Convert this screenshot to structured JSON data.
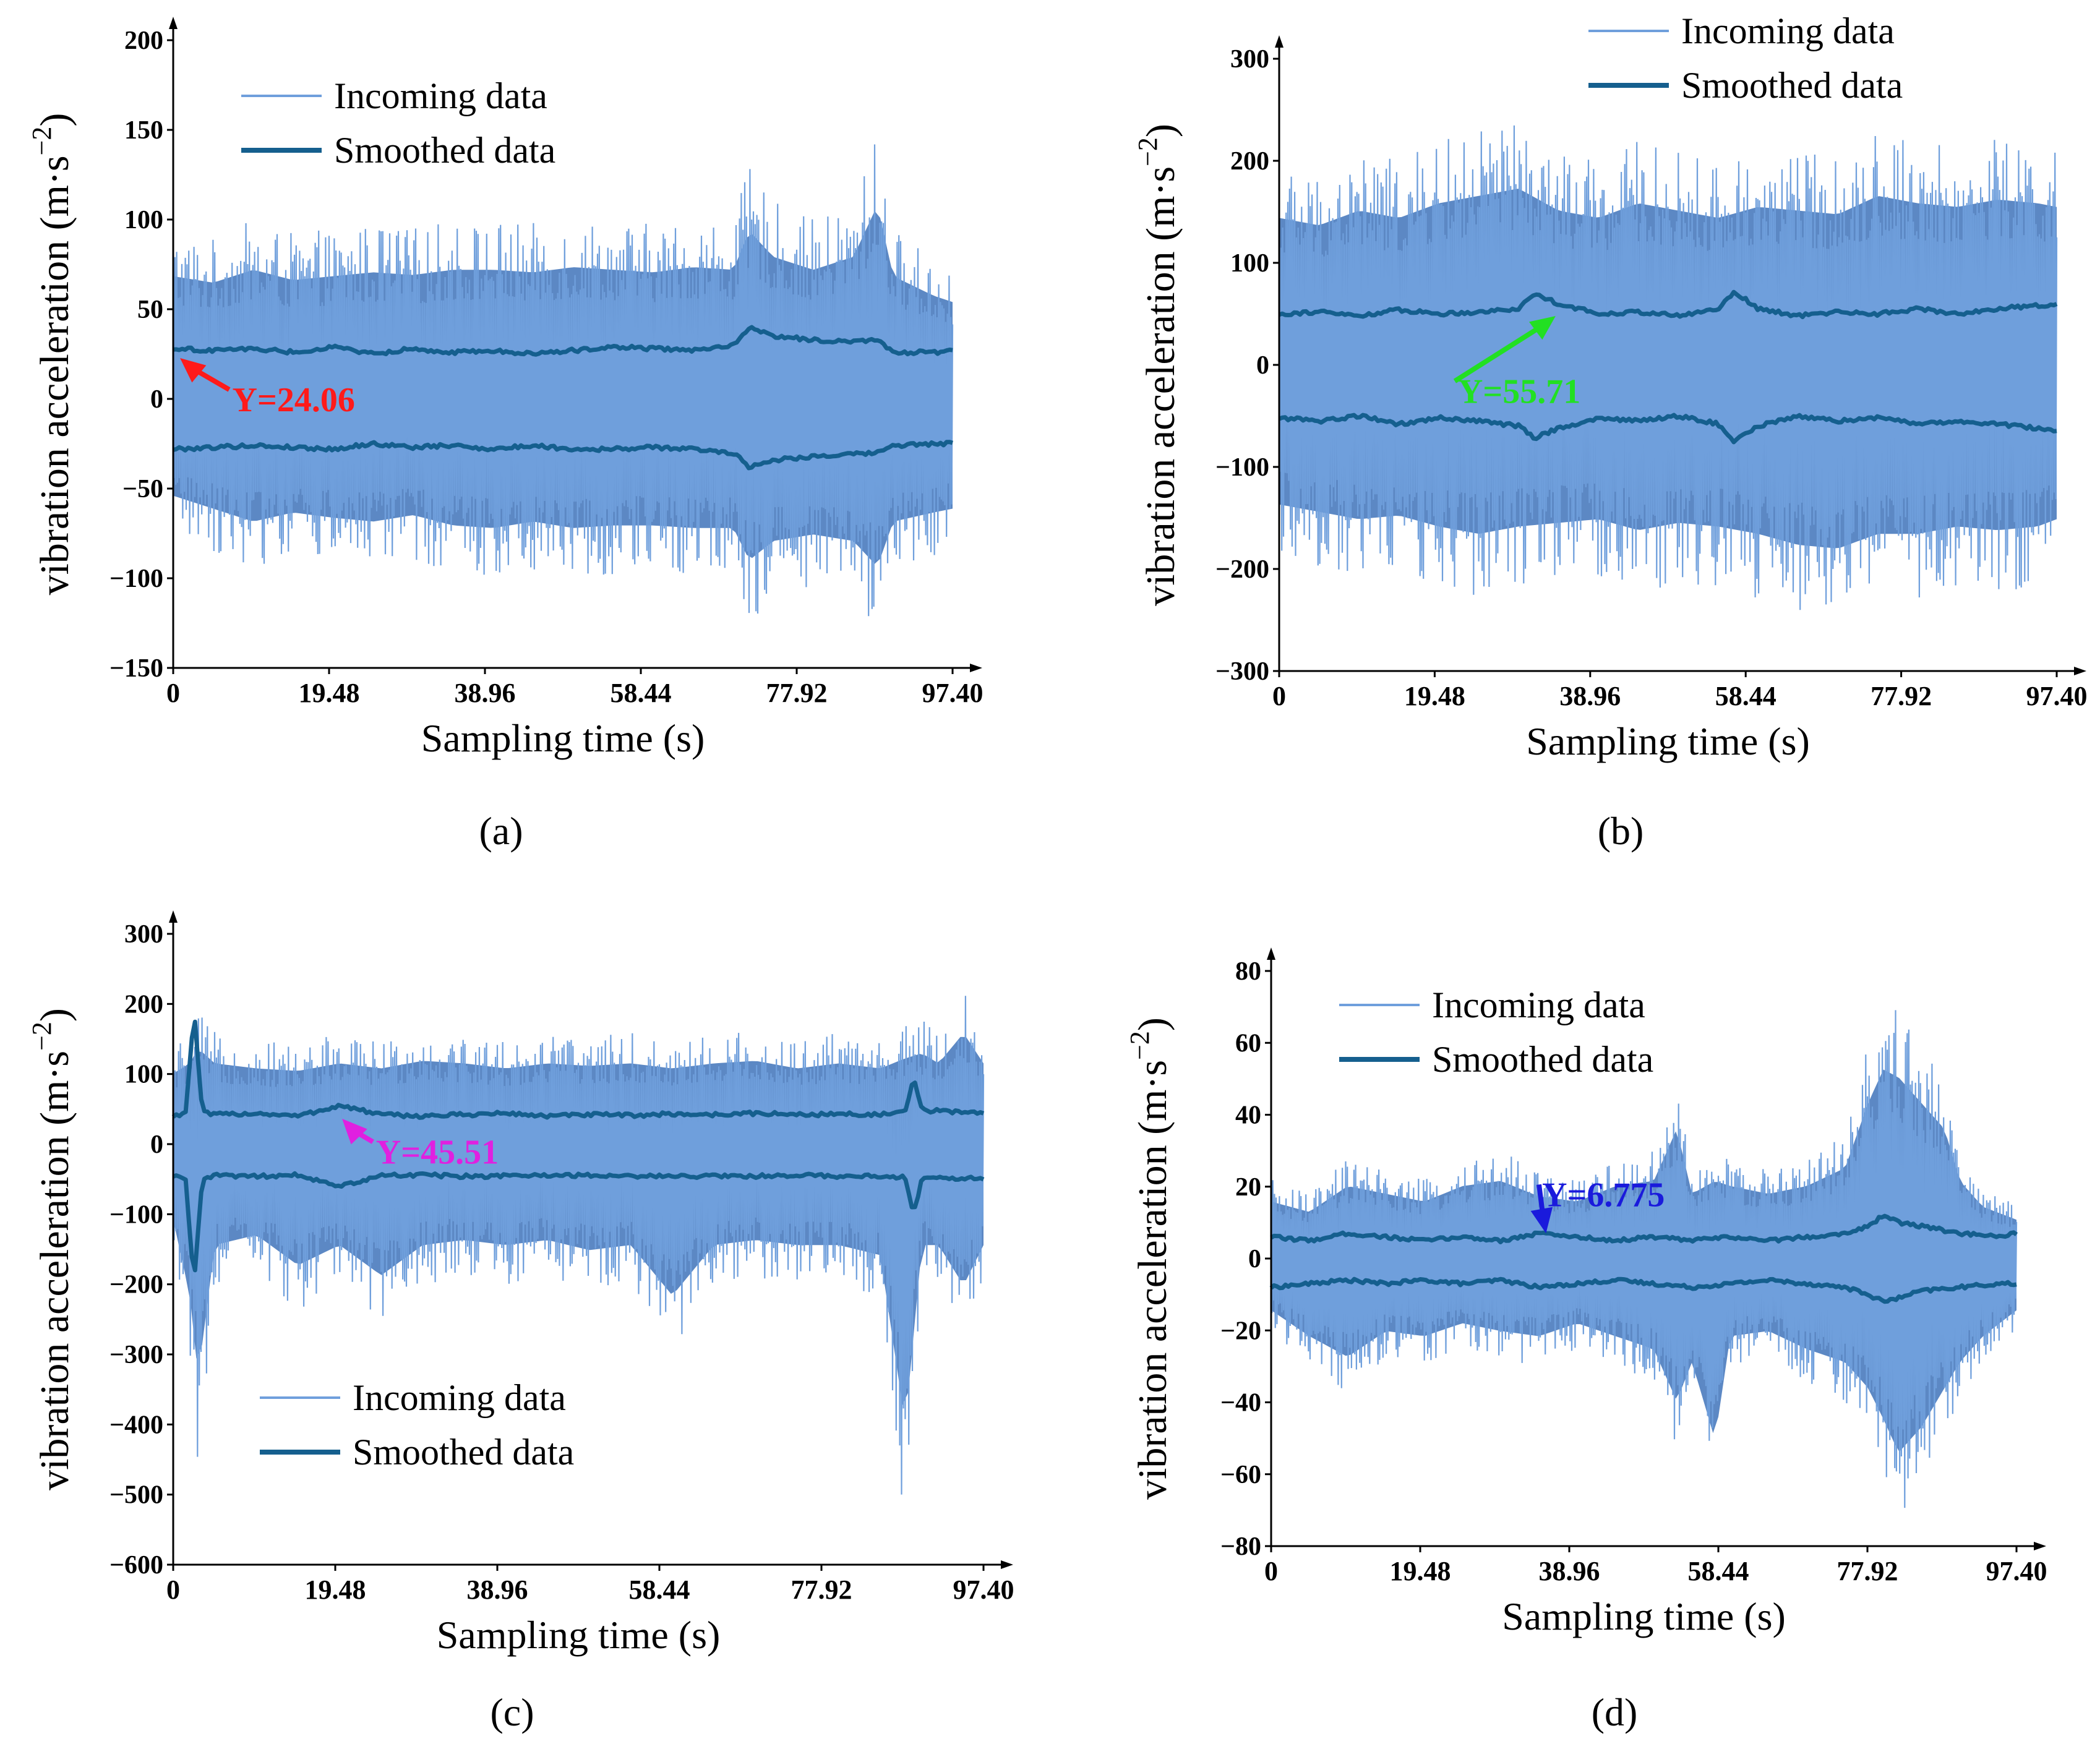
{
  "colors": {
    "incoming": "#6f9fdc",
    "envelope_fill": "#5c88c4",
    "smoothed": "#155f8e",
    "axis": "#000000"
  },
  "chart_data": [
    {
      "panel": "a",
      "type": "line",
      "caption": "(a)",
      "xlabel": "Sampling time (s)",
      "ylabel": "vibration acceleration (m·s",
      "ylabel_sup": "−2",
      "ylabel_close": ")",
      "xlim": [
        0,
        97.4
      ],
      "ylim": [
        -150,
        200
      ],
      "xticks": [
        0,
        19.48,
        38.96,
        58.44,
        77.92,
        97.4
      ],
      "xtick_labels": [
        "0",
        "19.48",
        "38.96",
        "58.44",
        "77.92",
        "97.40"
      ],
      "yticks": [
        -150,
        -100,
        -50,
        0,
        50,
        100,
        150,
        200
      ],
      "ytick_labels": [
        "−150",
        "−100",
        "−50",
        "0",
        "50",
        "100",
        "150",
        "200"
      ],
      "legend": {
        "placement": "top-left",
        "entries": [
          "Incoming data",
          "Smoothed data"
        ]
      },
      "annotation": {
        "text": "Y=24.06",
        "color": "#ff1a1a",
        "x": 0.5,
        "y": 24.06,
        "text_x": 7,
        "text_y": 0
      },
      "series": [
        {
          "name": "Incoming data",
          "x": [
            0,
            5,
            10,
            15,
            20,
            25,
            30,
            35,
            40,
            45,
            50,
            55,
            60,
            65,
            70,
            72,
            75,
            80,
            85,
            88,
            90,
            95,
            97.4
          ],
          "high": [
            95,
            90,
            100,
            92,
            95,
            98,
            96,
            100,
            100,
            98,
            102,
            100,
            98,
            102,
            100,
            130,
            110,
            100,
            110,
            150,
            95,
            80,
            75
          ],
          "low": [
            -75,
            -85,
            -95,
            -88,
            -92,
            -95,
            -90,
            -98,
            -100,
            -95,
            -100,
            -98,
            -98,
            -100,
            -100,
            -125,
            -110,
            -105,
            -110,
            -130,
            -95,
            -88,
            -85
          ]
        },
        {
          "name": "Smoothed data",
          "x": [
            0,
            5,
            10,
            15,
            20,
            25,
            30,
            35,
            40,
            45,
            50,
            55,
            60,
            65,
            70,
            72,
            75,
            80,
            85,
            88,
            90,
            95,
            97.4
          ],
          "upper": [
            28,
            27,
            28,
            26,
            29,
            25,
            28,
            26,
            27,
            25,
            27,
            29,
            28,
            27,
            30,
            40,
            35,
            33,
            32,
            33,
            26,
            26,
            27
          ],
          "lower": [
            -28,
            -27,
            -26,
            -27,
            -28,
            -25,
            -27,
            -26,
            -28,
            -26,
            -28,
            -28,
            -27,
            -28,
            -30,
            -38,
            -34,
            -32,
            -31,
            -30,
            -26,
            -25,
            -25
          ]
        }
      ]
    },
    {
      "panel": "b",
      "type": "line",
      "caption": "(b)",
      "xlabel": "Sampling time (s)",
      "ylabel": "vibration acceleration (m·s",
      "ylabel_sup": "−2",
      "ylabel_close": ")",
      "xlim": [
        0,
        97.4
      ],
      "ylim": [
        -300,
        300
      ],
      "xticks": [
        0,
        19.48,
        38.96,
        58.44,
        77.92,
        97.4
      ],
      "xtick_labels": [
        "0",
        "19.48",
        "38.96",
        "58.44",
        "77.92",
        "97.40"
      ],
      "yticks": [
        -300,
        -200,
        -100,
        0,
        100,
        200,
        300
      ],
      "ytick_labels": [
        "−300",
        "−200",
        "−100",
        "0",
        "100",
        "200",
        "300"
      ],
      "legend": {
        "placement": "top-center",
        "entries": [
          "Incoming data",
          "Smoothed data"
        ]
      },
      "annotation": {
        "text": "Y=55.71",
        "color": "#22e022",
        "x": 35,
        "y": 50,
        "text_x": 22,
        "text_y": -25
      },
      "series": [
        {
          "name": "Incoming data",
          "x": [
            0,
            5,
            10,
            15,
            20,
            25,
            30,
            35,
            40,
            45,
            50,
            55,
            60,
            65,
            70,
            75,
            80,
            85,
            90,
            95,
            97.4
          ],
          "high": [
            200,
            190,
            210,
            200,
            220,
            230,
            240,
            210,
            200,
            220,
            210,
            200,
            215,
            210,
            205,
            230,
            220,
            215,
            225,
            220,
            215
          ],
          "low": [
            -190,
            -200,
            -210,
            -205,
            -220,
            -230,
            -220,
            -215,
            -210,
            -225,
            -215,
            -220,
            -230,
            -245,
            -250,
            -230,
            -230,
            -220,
            -225,
            -220,
            -210
          ]
        },
        {
          "name": "Smoothed data",
          "x": [
            0,
            5,
            10,
            15,
            20,
            25,
            30,
            32,
            35,
            40,
            45,
            50,
            55,
            57,
            60,
            65,
            70,
            75,
            80,
            85,
            90,
            95,
            97.4
          ],
          "upper": [
            50,
            52,
            48,
            54,
            50,
            52,
            55,
            70,
            60,
            50,
            52,
            48,
            55,
            72,
            55,
            48,
            52,
            50,
            55,
            50,
            55,
            58,
            60
          ],
          "lower": [
            -52,
            -55,
            -50,
            -58,
            -52,
            -55,
            -60,
            -72,
            -62,
            -52,
            -55,
            -50,
            -58,
            -75,
            -60,
            -50,
            -55,
            -52,
            -58,
            -55,
            -58,
            -62,
            -65
          ]
        }
      ]
    },
    {
      "panel": "c",
      "type": "line",
      "caption": "(c)",
      "xlabel": "Sampling time (s)",
      "ylabel": "vibration acceleration (m·s",
      "ylabel_sup": "−2",
      "ylabel_close": ")",
      "xlim": [
        0,
        97.4
      ],
      "ylim": [
        -600,
        300
      ],
      "xticks": [
        0,
        19.48,
        38.96,
        58.44,
        77.92,
        97.4
      ],
      "xtick_labels": [
        "0",
        "19.48",
        "38.96",
        "58.44",
        "77.92",
        "97.40"
      ],
      "yticks": [
        -600,
        -500,
        -400,
        -300,
        -200,
        -100,
        0,
        100,
        200,
        300
      ],
      "ytick_labels": [
        "−600",
        "−500",
        "−400",
        "−300",
        "−200",
        "−100",
        "0",
        "100",
        "200",
        "300"
      ],
      "legend": {
        "placement": "bottom-left",
        "entries": [
          "Incoming data",
          "Smoothed data"
        ]
      },
      "annotation": {
        "text": "Y=45.51",
        "color": "#e020e0",
        "x": 20,
        "y": 40,
        "text_x": 24,
        "text_y": -10
      },
      "series": [
        {
          "name": "Incoming data",
          "x": [
            0,
            2,
            3,
            5,
            10,
            15,
            20,
            25,
            30,
            35,
            40,
            45,
            50,
            55,
            60,
            65,
            70,
            75,
            80,
            85,
            88,
            90,
            92,
            95,
            97.4
          ],
          "high": [
            140,
            160,
            190,
            160,
            150,
            145,
            160,
            150,
            165,
            160,
            150,
            160,
            155,
            160,
            150,
            160,
            165,
            150,
            160,
            150,
            170,
            180,
            160,
            220,
            160
          ],
          "low": [
            -150,
            -300,
            -460,
            -200,
            -180,
            -240,
            -200,
            -260,
            -200,
            -190,
            -200,
            -190,
            -210,
            -200,
            -300,
            -200,
            -190,
            -200,
            -200,
            -220,
            -555,
            -200,
            -200,
            -280,
            -200
          ]
        },
        {
          "name": "Smoothed data",
          "x": [
            0,
            1.5,
            2.5,
            3.5,
            5,
            10,
            15,
            20,
            25,
            30,
            35,
            40,
            45,
            50,
            55,
            60,
            65,
            70,
            75,
            80,
            85,
            88,
            89,
            90,
            95,
            97.4
          ],
          "upper": [
            40,
            45,
            190,
            45,
            42,
            44,
            40,
            55,
            42,
            40,
            42,
            44,
            40,
            42,
            41,
            43,
            42,
            44,
            42,
            43,
            42,
            45,
            95,
            48,
            46,
            45
          ],
          "lower": [
            -45,
            -50,
            -200,
            -50,
            -45,
            -46,
            -44,
            -60,
            -45,
            -44,
            -46,
            -45,
            -44,
            -45,
            -45,
            -46,
            -45,
            -46,
            -44,
            -46,
            -45,
            -48,
            -100,
            -50,
            -48,
            -50
          ]
        }
      ]
    },
    {
      "panel": "d",
      "type": "line",
      "caption": "(d)",
      "xlabel": "Sampling time (s)",
      "ylabel": "vibration acceleration (m·s",
      "ylabel_sup": "−2",
      "ylabel_close": ")",
      "xlim": [
        0,
        97.4
      ],
      "ylim": [
        -80,
        80
      ],
      "xticks": [
        0,
        19.48,
        38.96,
        58.44,
        77.92,
        97.4
      ],
      "xtick_labels": [
        "0",
        "19.48",
        "38.96",
        "58.44",
        "77.92",
        "97.40"
      ],
      "yticks": [
        -80,
        -60,
        -40,
        -20,
        0,
        20,
        40,
        60,
        80
      ],
      "ytick_labels": [
        "−80",
        "−60",
        "−40",
        "−20",
        "0",
        "20",
        "40",
        "60",
        "80"
      ],
      "legend": {
        "placement": "top-left",
        "entries": [
          "Incoming data",
          "Smoothed data"
        ]
      },
      "annotation": {
        "text": "Y=6.775",
        "color": "#1a1adc",
        "x": 36,
        "y": 6,
        "text_x": 35,
        "text_y": 18
      },
      "series": [
        {
          "name": "Incoming data",
          "x": [
            0,
            5,
            10,
            15,
            20,
            25,
            30,
            35,
            40,
            45,
            50,
            53,
            55,
            58,
            60,
            65,
            70,
            75,
            78,
            80,
            82,
            85,
            88,
            90,
            93,
            97.4
          ],
          "high": [
            22,
            18,
            28,
            25,
            22,
            28,
            30,
            24,
            22,
            28,
            30,
            50,
            25,
            30,
            28,
            25,
            28,
            35,
            60,
            73,
            70,
            60,
            50,
            30,
            20,
            15
          ],
          "low": [
            -20,
            -30,
            -38,
            -28,
            -30,
            -25,
            -28,
            -30,
            -25,
            -30,
            -35,
            -55,
            -40,
            -70,
            -30,
            -28,
            -35,
            -40,
            -50,
            -62,
            -75,
            -65,
            -50,
            -40,
            -30,
            -20
          ]
        },
        {
          "name": "Smoothed data",
          "x": [
            0,
            5,
            10,
            15,
            20,
            25,
            30,
            35,
            40,
            45,
            50,
            55,
            60,
            65,
            70,
            75,
            78,
            80,
            82,
            85,
            90,
            95,
            97.4
          ],
          "upper": [
            6,
            5,
            7,
            6,
            5,
            6,
            5,
            7,
            6,
            5,
            6,
            5,
            6,
            5,
            6,
            7,
            9,
            12,
            10,
            9,
            7,
            6,
            7
          ],
          "lower": [
            -8,
            -7,
            -6,
            -7,
            -6,
            -7,
            -6,
            -8,
            -7,
            -6,
            -7,
            -8,
            -7,
            -6,
            -7,
            -8,
            -10,
            -12,
            -11,
            -9,
            -8,
            -7,
            -7
          ]
        }
      ]
    }
  ]
}
